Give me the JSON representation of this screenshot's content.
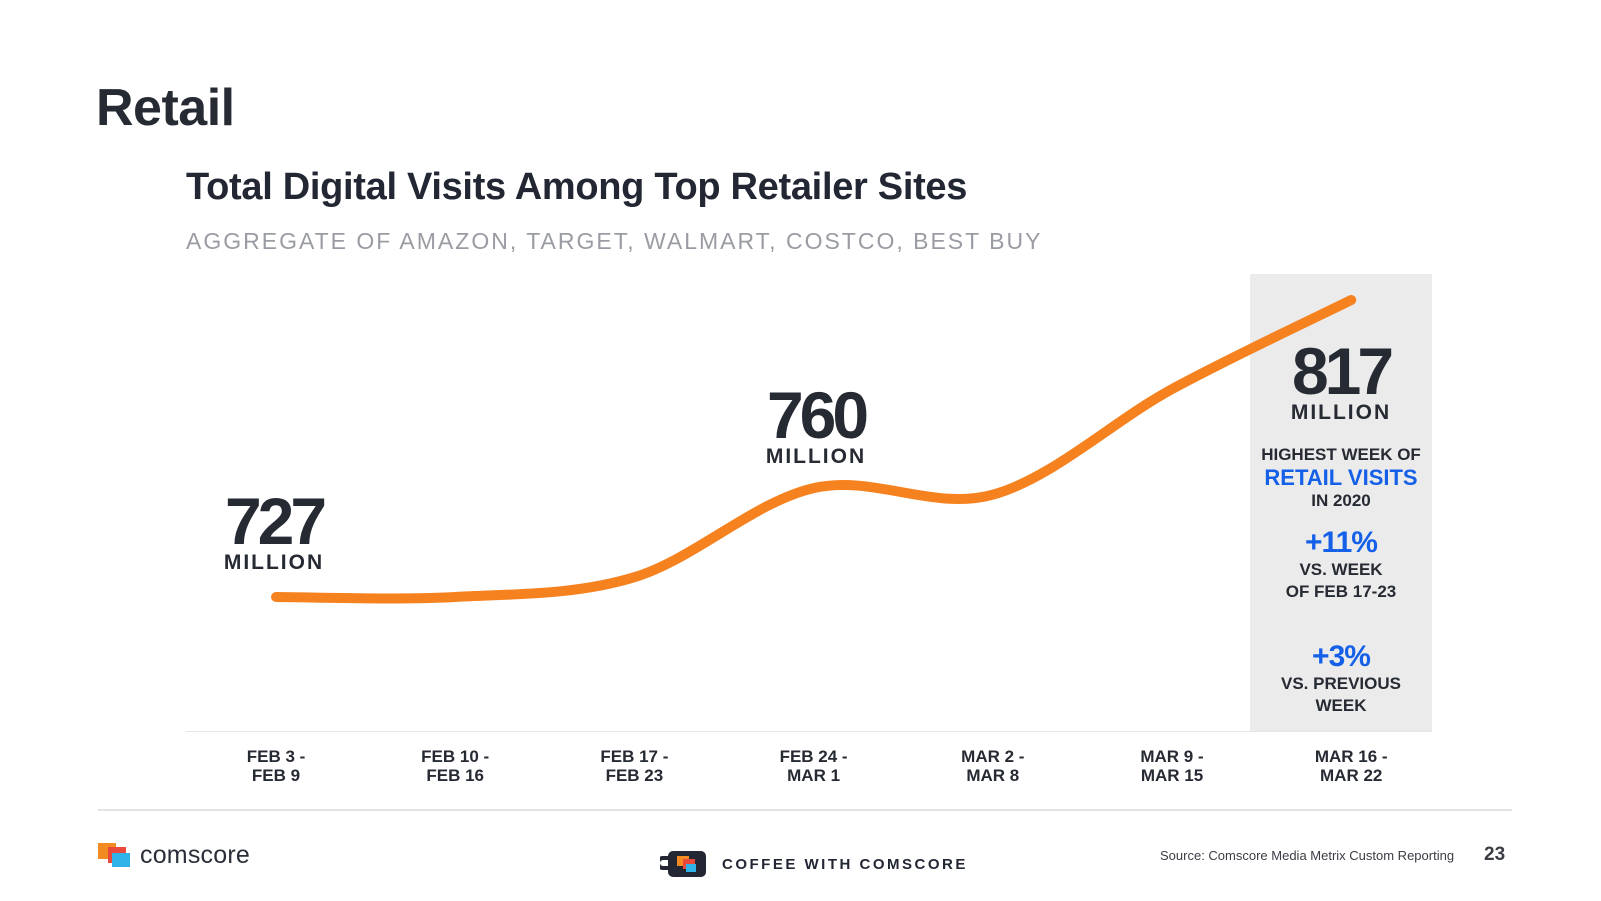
{
  "slide": {
    "section_title": "Retail",
    "page_number": "23",
    "source": "Source: Comscore Media Metrix Custom Reporting",
    "brand": "comscore",
    "coffee_label": "COFFEE WITH COMSCORE"
  },
  "colors": {
    "line": "#f6821f",
    "accent_blue": "#1560e8",
    "highlight_band": "#ebebeb",
    "text_dark": "#262a33"
  },
  "chart_data": {
    "type": "line",
    "title": "Total Digital Visits Among Top Retailer Sites",
    "subtitle": "AGGREGATE OF AMAZON, TARGET, WALMART, COSTCO, BEST BUY",
    "xlabel": "",
    "ylabel": "",
    "units": "millions of visits",
    "grid": false,
    "categories": [
      [
        "FEB 3 -",
        "FEB 9"
      ],
      [
        "FEB 10 -",
        "FEB 16"
      ],
      [
        "FEB 17 -",
        "FEB 23"
      ],
      [
        "FEB 24 -",
        "MAR 1"
      ],
      [
        "MAR 2 -",
        "MAR 8"
      ],
      [
        "MAR 9 -",
        "MAR 15"
      ],
      [
        "MAR 16 -",
        "MAR 22"
      ]
    ],
    "series": [
      {
        "values": [
          727,
          727,
          733,
          760,
          758,
          790,
          817
        ]
      }
    ],
    "highlighted_category": 6,
    "callouts": [
      {
        "index": 0,
        "value": "727",
        "unit": "MILLION"
      },
      {
        "index": 3,
        "value": "760",
        "unit": "MILLION"
      },
      {
        "index": 6,
        "value": "817",
        "unit": "MILLION"
      }
    ],
    "annotations": {
      "highest_week": {
        "line1": "HIGHEST WEEK OF",
        "line2": "RETAIL VISITS",
        "line3": "IN 2020"
      },
      "vs_feb": {
        "pct": "+11%",
        "line1": "VS. WEEK",
        "line2": "OF FEB 17-23"
      },
      "vs_prev": {
        "pct": "+3%",
        "line1": "VS. PREVIOUS",
        "line2": "WEEK"
      }
    }
  }
}
